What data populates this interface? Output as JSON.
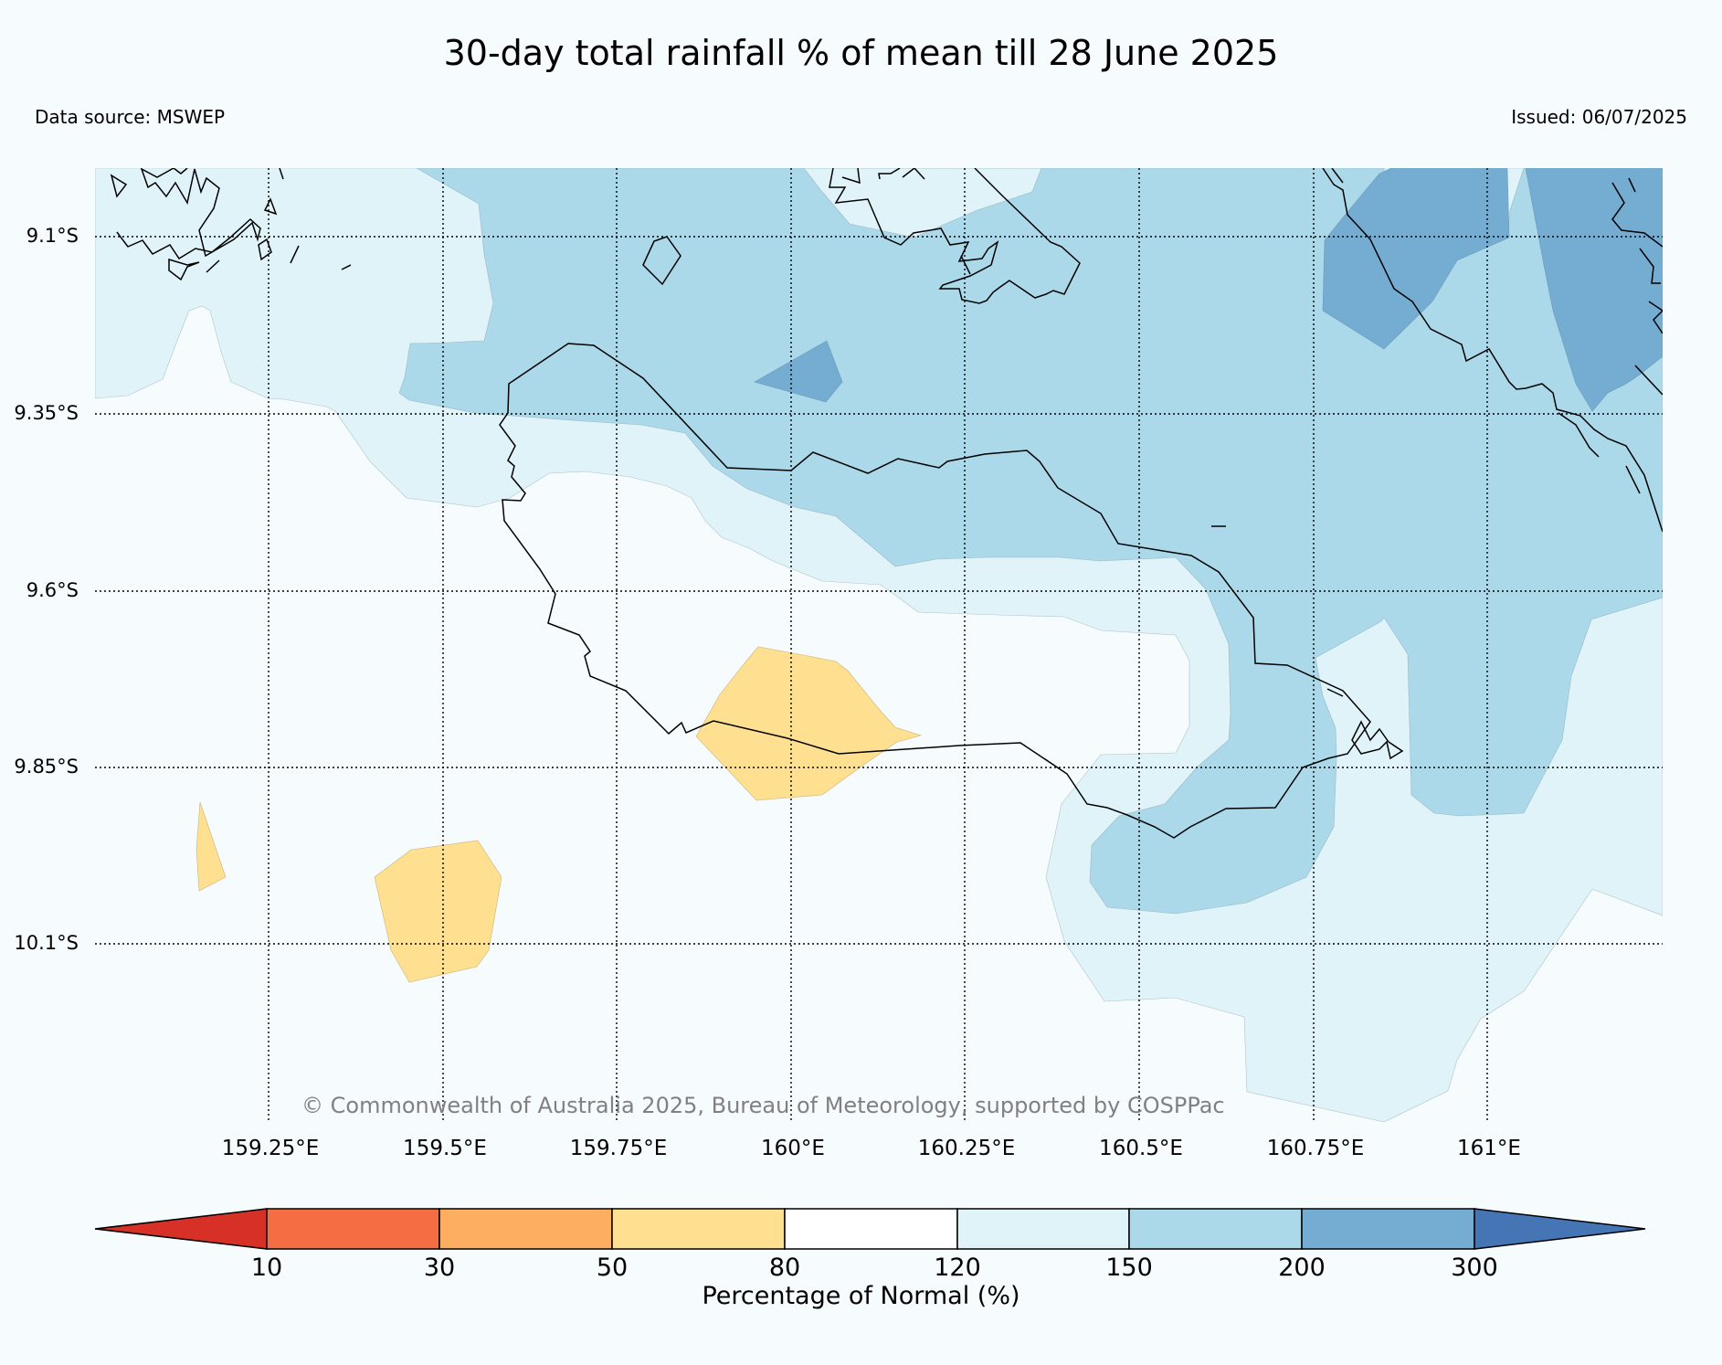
{
  "title": "30-day total rainfall % of mean till 28 June 2025",
  "data_source": "Data source: MSWEP",
  "issued": "Issued: 06/07/2025",
  "copyright": "© Commonwealth of Australia 2025, Bureau of Meteorology, supported by COSPPac",
  "lat_labels": [
    "9.1°S",
    "9.35°S",
    "9.6°S",
    "9.85°S",
    "10.1°S"
  ],
  "lon_labels": [
    "159.25°E",
    "159.5°E",
    "159.75°E",
    "160°E",
    "160.25°E",
    "160.5°E",
    "160.75°E",
    "161°E"
  ],
  "colorbar": {
    "label": "Percentage of Normal (%)",
    "ticks": [
      "10",
      "30",
      "50",
      "80",
      "120",
      "150",
      "200",
      "300"
    ],
    "colors": {
      "below_10": "#d73027",
      "10_30": "#f46d43",
      "30_50": "#fdae61",
      "50_80": "#fee090",
      "80_120": "#ffffff",
      "120_150": "#e0f3f8",
      "150_200": "#abd9e9",
      "200_300": "#74add1",
      "above_300": "#4575b4"
    }
  }
}
